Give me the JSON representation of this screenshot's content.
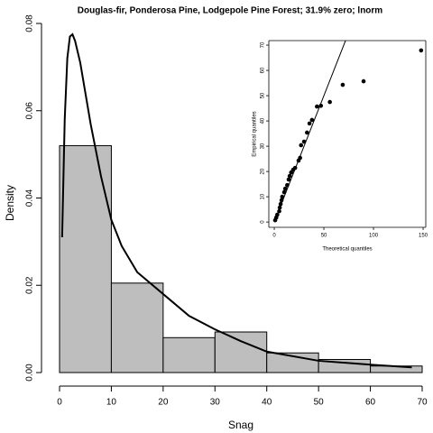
{
  "chart_data": [
    {
      "type": "histogram",
      "title": "Douglas-fir, Ponderosa Pine, Lodgepole Pine Forest; 31.9% zero; lnorm",
      "xlabel": "Snag",
      "ylabel": "Density",
      "bins": [
        0,
        10,
        20,
        30,
        40,
        50,
        60,
        70
      ],
      "counts": [
        0.052,
        0.0205,
        0.008,
        0.0093,
        0.0045,
        0.003,
        0.0015
      ],
      "color": "#bebebe",
      "xlim": [
        0,
        70
      ],
      "ylim": [
        0,
        0.08
      ],
      "xticks": [
        0,
        10,
        20,
        30,
        40,
        50,
        60,
        70
      ],
      "yticks": [
        {
          "value": 0,
          "label": "0.00"
        },
        {
          "value": 0.02,
          "label": "0.02"
        },
        {
          "value": 0.04,
          "label": "0.04"
        },
        {
          "value": 0.06,
          "label": "0.06"
        },
        {
          "value": 0.08,
          "label": "0.08"
        }
      ],
      "curve": {
        "color": "#000000",
        "x": [
          0.5,
          1,
          1.5,
          2,
          2.5,
          3,
          4,
          5,
          6,
          8,
          10,
          12,
          15,
          20,
          25,
          30,
          35,
          40,
          50,
          60,
          68
        ],
        "y": [
          0.031,
          0.058,
          0.072,
          0.077,
          0.0775,
          0.076,
          0.071,
          0.064,
          0.057,
          0.045,
          0.035,
          0.029,
          0.023,
          0.018,
          0.013,
          0.0099,
          0.0072,
          0.0048,
          0.0027,
          0.0018,
          0.0012
        ]
      }
    },
    {
      "type": "scatter",
      "xlabel": "Theoretical quantiles",
      "ylabel": "Empirical quantiles",
      "x": [
        0.9,
        2,
        3,
        5,
        5.5,
        6.4,
        7.3,
        8,
        10,
        11,
        13,
        14.5,
        15.5,
        17,
        19,
        21,
        24.5,
        26,
        27,
        30,
        33,
        35.5,
        38,
        43,
        47,
        56,
        69,
        90,
        148
      ],
      "y": [
        0.7,
        1.8,
        2.9,
        4.3,
        5.7,
        7.1,
        8.6,
        10,
        11.8,
        13.2,
        14.6,
        16.8,
        18.2,
        19.6,
        20.7,
        21.4,
        24.3,
        25.4,
        30.4,
        31.8,
        35.4,
        39,
        40.4,
        45.7,
        46,
        47.5,
        54.3,
        55.7,
        67.9
      ],
      "color": "#000000",
      "xlim": [
        -5.5,
        152.7
      ],
      "ylim": [
        -2.1,
        71.8
      ],
      "xticks": [
        0,
        50,
        100,
        150
      ],
      "yticks": [
        0,
        10,
        20,
        30,
        40,
        50,
        60,
        70
      ],
      "reference_line": {
        "x": [
          0,
          72
        ],
        "y": [
          0,
          72
        ]
      }
    }
  ]
}
